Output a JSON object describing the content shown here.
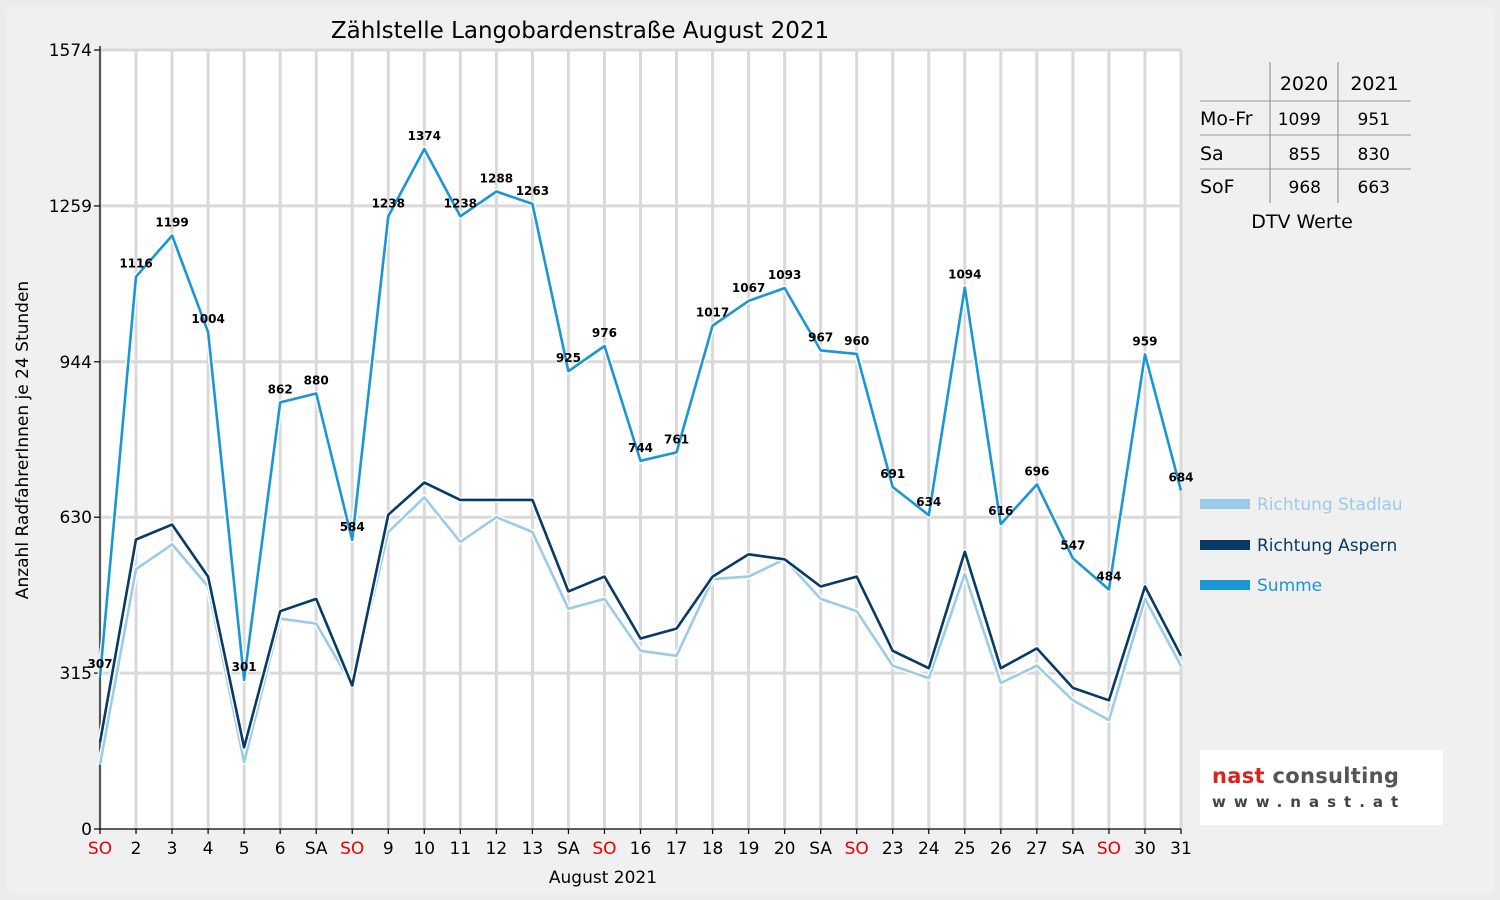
{
  "chart_data": {
    "type": "line",
    "title": "Zählstelle Langobardenstraße August 2021",
    "xlabel": "August 2021",
    "ylabel": "Anzahl RadfahrerInnen je 24 Stunden",
    "ylim": [
      0,
      1574
    ],
    "yticks": [
      0,
      315,
      630,
      944,
      1259,
      1574
    ],
    "grid": true,
    "legend_position": "right",
    "categories": [
      "SO",
      "2",
      "3",
      "4",
      "5",
      "6",
      "SA",
      "SO",
      "9",
      "10",
      "11",
      "12",
      "13",
      "SA",
      "SO",
      "16",
      "17",
      "18",
      "19",
      "20",
      "SA",
      "SO",
      "23",
      "24",
      "25",
      "26",
      "27",
      "SA",
      "SO",
      "30",
      "31"
    ],
    "highlight_categories": [
      "SO"
    ],
    "highlight_color": "#e30000",
    "series": [
      {
        "name": "Richtung Stadlau",
        "color": "#9ccbe8",
        "values": [
          130,
          525,
          575,
          490,
          135,
          425,
          415,
          290,
          600,
          670,
          580,
          630,
          600,
          445,
          465,
          360,
          350,
          505,
          510,
          545,
          465,
          440,
          330,
          305,
          515,
          295,
          330,
          260,
          220,
          465,
          330
        ]
      },
      {
        "name": "Richtung Aspern",
        "color": "#073b66",
        "values": [
          175,
          585,
          615,
          510,
          165,
          440,
          465,
          290,
          635,
          700,
          665,
          665,
          665,
          480,
          510,
          385,
          405,
          510,
          555,
          545,
          490,
          510,
          360,
          325,
          560,
          325,
          365,
          285,
          260,
          490,
          350
        ]
      },
      {
        "name": "Summe",
        "color": "#1b96d4",
        "values": [
          307,
          1116,
          1199,
          1004,
          301,
          862,
          880,
          584,
          1238,
          1374,
          1238,
          1288,
          1263,
          925,
          976,
          744,
          761,
          1017,
          1067,
          1093,
          967,
          960,
          691,
          634,
          1094,
          616,
          696,
          547,
          484,
          959,
          684
        ],
        "labels": [
          "307",
          "1116",
          "1199",
          "1004",
          "301",
          "862",
          "880",
          "584",
          "1238",
          "1374",
          "1238",
          "1288",
          "1263",
          "925",
          "976",
          "744",
          "761",
          "1017",
          "1067",
          "1093",
          "967",
          "960",
          "691",
          "634",
          "1094",
          "616",
          "696",
          "547",
          "484",
          "959",
          "684"
        ]
      }
    ],
    "dtv_table": {
      "caption": "DTV Werte",
      "columns": [
        "",
        "2020",
        "2021"
      ],
      "rows": [
        [
          "Mo-Fr",
          "1099",
          "951"
        ],
        [
          "Sa",
          "855",
          "830"
        ],
        [
          "SoF",
          "968",
          "663"
        ]
      ]
    }
  },
  "logo": {
    "brand_part1": "nast",
    "brand_part2": " consulting",
    "url": "www.nast.at"
  }
}
